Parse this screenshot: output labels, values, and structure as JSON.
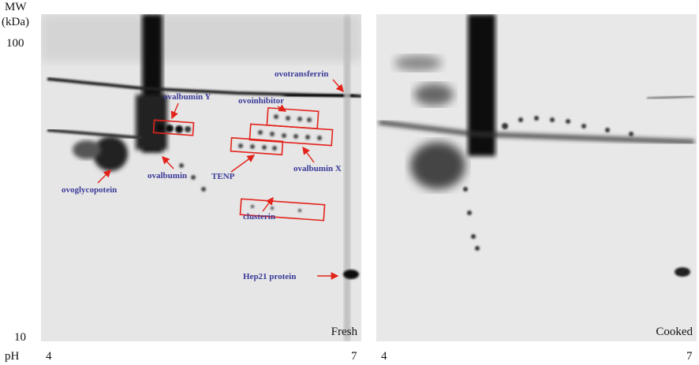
{
  "axis": {
    "mw_label": "MW",
    "mw_unit": "(kDa)",
    "mw_ticks": [
      "100",
      "10"
    ],
    "ph_label": "pH"
  },
  "panels": [
    {
      "label": "Fresh",
      "ph_ticks": [
        "4",
        "7"
      ],
      "annotations": [
        "ovotransferrin",
        "ovoinhibitor",
        "ovalbumin Y",
        "ovalbumin",
        "ovoglycopotein",
        "TENP",
        "ovalbumin X",
        "clusterin",
        "Hep21 protein"
      ]
    },
    {
      "label": "Cooked",
      "ph_ticks": [
        "4",
        "7"
      ]
    }
  ]
}
